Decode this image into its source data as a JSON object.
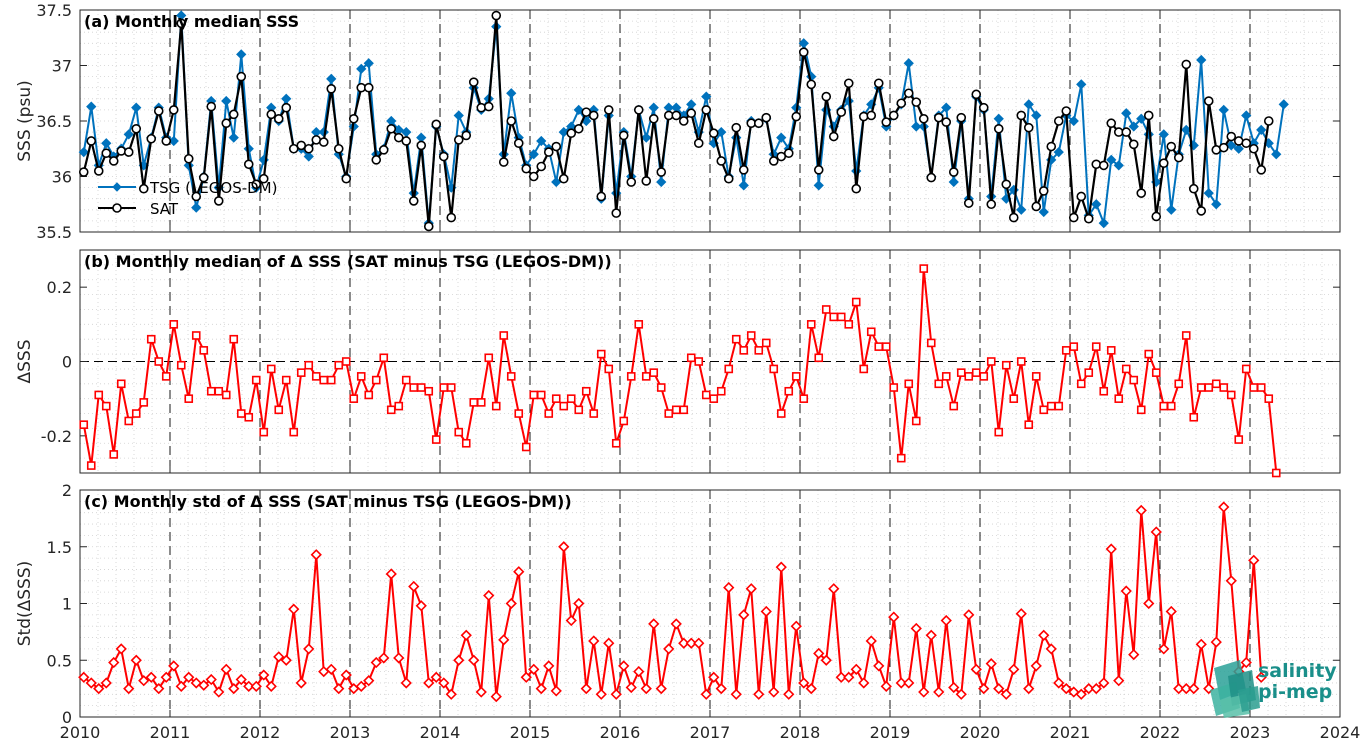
{
  "chart_data": [
    {
      "type": "line",
      "title": "(a) Monthly median SSS",
      "ylabel": "SSS (psu)",
      "xlim": [
        2010,
        2024
      ],
      "ylim": [
        35.5,
        37.5
      ],
      "yticks": [
        "35.5",
        "36",
        "36.5",
        "37",
        "37.5"
      ],
      "ytick_values": [
        35.5,
        36,
        36.5,
        37,
        37.5
      ],
      "grid": true,
      "legend": "bottom-left",
      "series": [
        {
          "name": "TSG (LEGOS-DM)",
          "color": "#0072bd",
          "marker": "diamond",
          "values": [
            36.22,
            36.63,
            36.1,
            36.3,
            36.18,
            36.25,
            36.38,
            36.62,
            36.1,
            36.35,
            36.62,
            36.35,
            36.32,
            37.45,
            36.1,
            35.72,
            36.0,
            36.68,
            35.9,
            36.68,
            36.35,
            37.1,
            36.25,
            35.9,
            36.15,
            36.62,
            36.5,
            36.7,
            36.25,
            36.25,
            36.18,
            36.4,
            36.4,
            36.88,
            36.2,
            36.0,
            36.45,
            36.97,
            37.02,
            36.2,
            36.25,
            36.5,
            36.42,
            36.4,
            35.85,
            36.35,
            35.58,
            36.45,
            36.2,
            35.9,
            36.55,
            36.4,
            36.8,
            36.6,
            36.7,
            37.35,
            36.2,
            36.75,
            36.35,
            36.1,
            36.2,
            36.32,
            36.25,
            35.95,
            36.4,
            36.45,
            36.6,
            36.5,
            36.6,
            35.8,
            36.55,
            35.85,
            36.4,
            36.0,
            36.6,
            36.35,
            36.62,
            35.95,
            36.62,
            36.62,
            36.55,
            36.65,
            36.4,
            36.72,
            36.3,
            36.4,
            36.0,
            36.35,
            35.92,
            36.5,
            36.48,
            36.52,
            36.2,
            36.35,
            36.25,
            36.62,
            37.2,
            36.9,
            35.92,
            36.6,
            36.45,
            36.6,
            36.68,
            36.05,
            36.55,
            36.65,
            36.8,
            36.45,
            36.55,
            36.65,
            37.02,
            36.45,
            36.45,
            36.0,
            36.55,
            36.62,
            35.95,
            36.5,
            35.8,
            36.72,
            36.6,
            35.82,
            36.52,
            35.8,
            35.88,
            35.7,
            36.65,
            36.55,
            35.68,
            36.15,
            36.22,
            36.55,
            36.5,
            36.83,
            35.65,
            35.75,
            35.58,
            36.15,
            36.1,
            36.57,
            36.45,
            36.52,
            36.38,
            35.95,
            36.38,
            35.7,
            36.2,
            36.42,
            36.28,
            37.05,
            35.85,
            35.75,
            36.6,
            36.28,
            36.25,
            36.55,
            36.3,
            36.42,
            36.3,
            36.2,
            36.65
          ]
        },
        {
          "name": "SAT",
          "color": "#000000",
          "marker": "circle",
          "values": [
            36.04,
            36.32,
            36.05,
            36.21,
            36.14,
            36.23,
            36.22,
            36.43,
            35.89,
            36.34,
            36.59,
            36.32,
            36.6,
            37.38,
            36.16,
            35.82,
            35.99,
            36.63,
            35.78,
            36.48,
            36.56,
            36.9,
            36.11,
            35.93,
            35.98,
            36.56,
            36.52,
            36.62,
            36.25,
            36.28,
            36.25,
            36.33,
            36.31,
            36.79,
            36.25,
            35.98,
            36.52,
            36.8,
            36.8,
            36.15,
            36.24,
            36.43,
            36.35,
            36.32,
            35.78,
            36.28,
            35.55,
            36.47,
            36.18,
            35.63,
            36.33,
            36.37,
            36.85,
            36.62,
            36.63,
            37.45,
            36.13,
            36.5,
            36.3,
            36.07,
            36.0,
            36.09,
            36.22,
            36.27,
            35.98,
            36.39,
            36.43,
            36.58,
            36.55,
            35.82,
            36.6,
            35.67,
            36.37,
            35.95,
            36.6,
            35.96,
            36.52,
            36.04,
            36.55,
            36.55,
            36.5,
            36.57,
            36.3,
            36.6,
            36.39,
            36.14,
            35.98,
            36.44,
            36.06,
            36.48,
            36.48,
            36.53,
            36.14,
            36.18,
            36.21,
            36.54,
            37.12,
            36.83,
            36.06,
            36.72,
            36.36,
            36.58,
            36.84,
            35.89,
            36.54,
            36.55,
            36.84,
            36.49,
            36.55,
            36.66,
            36.75,
            36.67,
            36.52,
            35.99,
            36.53,
            36.49,
            36.04,
            36.53,
            35.76,
            36.74,
            36.62,
            35.75,
            36.43,
            35.93,
            35.63,
            36.55,
            36.44,
            35.73,
            35.87,
            36.27,
            36.5,
            36.59,
            35.63,
            35.82,
            35.62,
            36.11,
            36.1,
            36.48,
            36.4,
            36.4,
            36.29,
            35.85,
            36.55,
            35.64,
            36.12,
            36.27,
            36.17,
            37.01,
            35.89,
            35.69,
            36.68,
            36.24,
            36.26,
            36.36,
            36.32,
            36.3,
            36.25,
            36.06,
            36.5
          ]
        }
      ]
    },
    {
      "type": "line",
      "title": "(b) Monthly median of Δ SSS (SAT minus TSG (LEGOS-DM))",
      "ylabel": "ΔSSS",
      "xlim": [
        2010,
        2024
      ],
      "ylim": [
        -0.3,
        0.3
      ],
      "yticks": [
        "-0.2",
        "0",
        "0.2"
      ],
      "ytick_values": [
        -0.2,
        0,
        0.2
      ],
      "grid": true,
      "series": [
        {
          "name": "",
          "color": "#ff0000",
          "marker": "square",
          "values": [
            -0.17,
            -0.28,
            -0.09,
            -0.12,
            -0.25,
            -0.06,
            -0.16,
            -0.14,
            -0.11,
            0.06,
            0.0,
            -0.04,
            0.1,
            -0.01,
            -0.1,
            0.07,
            0.03,
            -0.08,
            -0.08,
            -0.09,
            0.06,
            -0.14,
            -0.15,
            -0.05,
            -0.19,
            -0.02,
            -0.13,
            -0.05,
            -0.19,
            -0.03,
            -0.01,
            -0.04,
            -0.05,
            -0.05,
            -0.01,
            0.0,
            -0.1,
            -0.04,
            -0.09,
            -0.05,
            0.01,
            -0.13,
            -0.12,
            -0.05,
            -0.07,
            -0.07,
            -0.08,
            -0.21,
            -0.07,
            -0.07,
            -0.19,
            -0.22,
            -0.11,
            -0.11,
            0.01,
            -0.12,
            0.07,
            -0.04,
            -0.14,
            -0.23,
            -0.09,
            -0.09,
            -0.14,
            -0.1,
            -0.12,
            -0.1,
            -0.13,
            -0.08,
            -0.14,
            0.02,
            -0.02,
            -0.22,
            -0.16,
            -0.04,
            0.1,
            -0.04,
            -0.03,
            -0.07,
            -0.14,
            -0.13,
            -0.13,
            0.01,
            0.0,
            -0.09,
            -0.1,
            -0.08,
            -0.02,
            0.06,
            0.03,
            0.07,
            0.03,
            0.05,
            -0.02,
            -0.14,
            -0.08,
            -0.04,
            -0.1,
            0.1,
            0.01,
            0.14,
            0.12,
            0.12,
            0.1,
            0.16,
            -0.02,
            0.08,
            0.04,
            0.04,
            -0.07,
            -0.26,
            -0.06,
            -0.16,
            0.25,
            0.05,
            -0.06,
            -0.04,
            -0.12,
            -0.03,
            -0.04,
            -0.03,
            -0.04,
            0.0,
            -0.19,
            -0.01,
            -0.1,
            0.0,
            -0.17,
            -0.04,
            -0.13,
            -0.12,
            -0.12,
            0.03,
            0.04,
            -0.06,
            -0.03,
            0.04,
            -0.08,
            0.03,
            -0.1,
            -0.02,
            -0.05,
            -0.13,
            0.02,
            -0.03,
            -0.12,
            -0.12,
            -0.06,
            0.07,
            -0.15,
            -0.07,
            -0.07,
            -0.06,
            -0.07,
            -0.09,
            -0.21,
            -0.02,
            -0.07,
            -0.07,
            -0.1,
            -0.3
          ]
        }
      ]
    },
    {
      "type": "line",
      "title": "(c) Monthly std of Δ SSS (SAT minus TSG (LEGOS-DM))",
      "ylabel": "Std(ΔSSS)",
      "xlabel": "",
      "xlim": [
        2010,
        2024
      ],
      "ylim": [
        0,
        2
      ],
      "yticks": [
        "0",
        "0.5",
        "1",
        "1.5",
        "2"
      ],
      "ytick_values": [
        0,
        0.5,
        1,
        1.5,
        2
      ],
      "xticks": [
        "2010",
        "2011",
        "2012",
        "2013",
        "2014",
        "2015",
        "2016",
        "2017",
        "2018",
        "2019",
        "2020",
        "2021",
        "2022",
        "2023",
        "2024"
      ],
      "xtick_values": [
        2010,
        2011,
        2012,
        2013,
        2014,
        2015,
        2016,
        2017,
        2018,
        2019,
        2020,
        2021,
        2022,
        2023,
        2024
      ],
      "grid": true,
      "series": [
        {
          "name": "",
          "color": "#ff0000",
          "marker": "diamond",
          "values": [
            0.35,
            0.3,
            0.25,
            0.3,
            0.48,
            0.6,
            0.25,
            0.5,
            0.32,
            0.35,
            0.25,
            0.35,
            0.45,
            0.27,
            0.35,
            0.3,
            0.28,
            0.33,
            0.22,
            0.42,
            0.25,
            0.33,
            0.27,
            0.27,
            0.37,
            0.27,
            0.53,
            0.5,
            0.95,
            0.3,
            0.6,
            1.43,
            0.4,
            0.42,
            0.25,
            0.37,
            0.25,
            0.27,
            0.32,
            0.48,
            0.52,
            1.26,
            0.52,
            0.3,
            1.15,
            0.98,
            0.3,
            0.35,
            0.3,
            0.2,
            0.5,
            0.72,
            0.5,
            0.22,
            1.07,
            0.18,
            0.68,
            1.0,
            1.28,
            0.35,
            0.42,
            0.25,
            0.45,
            0.23,
            1.5,
            0.85,
            1.0,
            0.25,
            0.67,
            0.2,
            0.65,
            0.2,
            0.45,
            0.26,
            0.4,
            0.25,
            0.82,
            0.25,
            0.6,
            0.82,
            0.65,
            0.65,
            0.65,
            0.2,
            0.35,
            0.25,
            1.14,
            0.2,
            0.9,
            1.13,
            0.2,
            0.93,
            0.22,
            1.32,
            0.2,
            0.8,
            0.3,
            0.25,
            0.56,
            0.5,
            1.13,
            0.35,
            0.35,
            0.42,
            0.3,
            0.67,
            0.45,
            0.27,
            0.88,
            0.3,
            0.3,
            0.78,
            0.22,
            0.72,
            0.22,
            0.85,
            0.26,
            0.2,
            0.9,
            0.42,
            0.25,
            0.47,
            0.25,
            0.2,
            0.42,
            0.91,
            0.25,
            0.45,
            0.72,
            0.6,
            0.3,
            0.25,
            0.22,
            0.2,
            0.25,
            0.25,
            0.3,
            1.48,
            0.32,
            1.11,
            0.55,
            1.82,
            1.0,
            1.63,
            0.6,
            0.93,
            0.25,
            0.25,
            0.25,
            0.64,
            0.25,
            0.66,
            1.85,
            1.2,
            0.4,
            0.48,
            1.38,
            0.35
          ]
        }
      ]
    }
  ],
  "logo": {
    "line1": "salinity",
    "line2": "pi-mep"
  }
}
